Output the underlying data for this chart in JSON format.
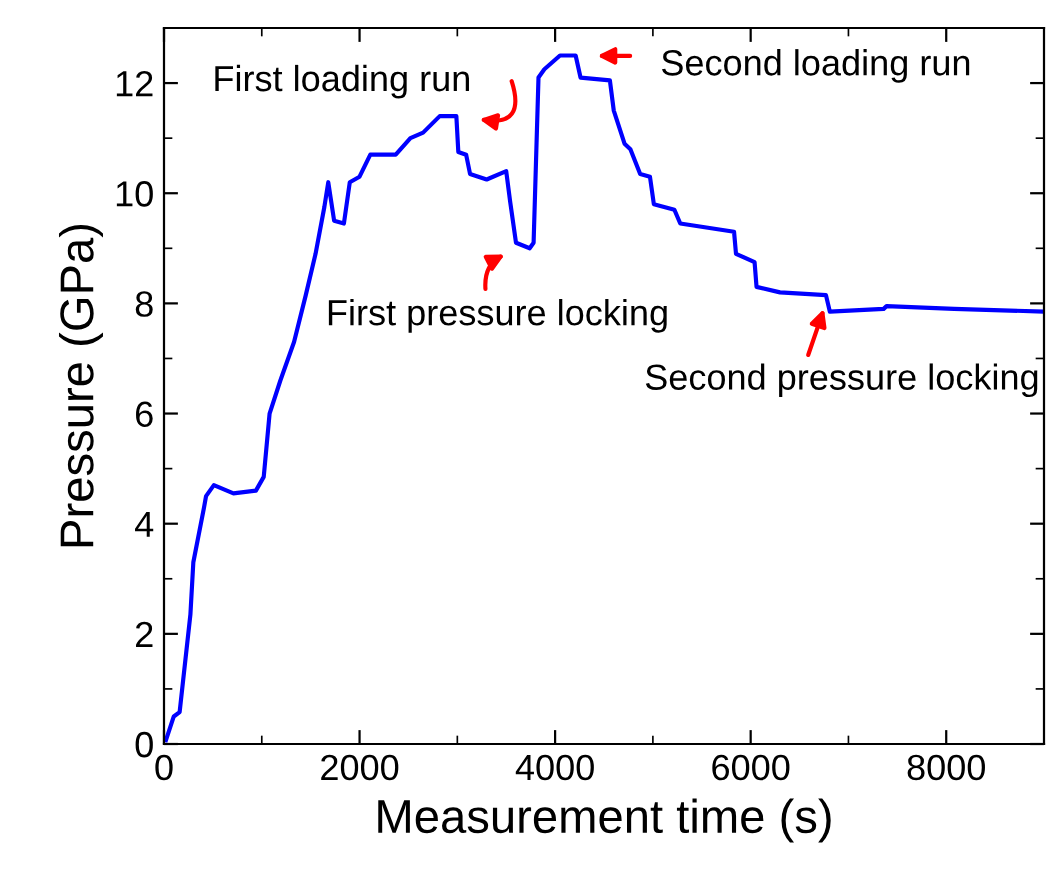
{
  "chart_data": {
    "type": "line",
    "xlabel": "Measurement time (s)",
    "ylabel": "Pressure (GPa)",
    "xlim": [
      0,
      9000
    ],
    "ylim": [
      0,
      13
    ],
    "xticks": [
      0,
      2000,
      4000,
      6000,
      8000
    ],
    "yticks": [
      0,
      2,
      4,
      6,
      8,
      10,
      12
    ],
    "grid": false,
    "legend": false,
    "marker": "none",
    "line_style": "solid",
    "series": [
      {
        "color": "#0000ff",
        "x": [
          20,
          100,
          160,
          270,
          300,
          410,
          430,
          510,
          710,
          940,
          1020,
          1080,
          1190,
          1330,
          1450,
          1550,
          1640,
          1680,
          1740,
          1840,
          1900,
          2000,
          2110,
          2370,
          2520,
          2650,
          2820,
          2990,
          3010,
          3090,
          3130,
          3300,
          3500,
          3540,
          3600,
          3740,
          3780,
          3830,
          3890,
          4050,
          4210,
          4260,
          4560,
          4600,
          4710,
          4770,
          4870,
          4970,
          5010,
          5220,
          5280,
          5830,
          5850,
          6040,
          6060,
          6300,
          6770,
          6810,
          7360,
          7390,
          8080,
          9000
        ],
        "values": [
          0.07,
          0.5,
          0.58,
          2.35,
          3.3,
          4.3,
          4.5,
          4.7,
          4.55,
          4.6,
          4.85,
          6.0,
          6.6,
          7.3,
          8.15,
          8.9,
          9.75,
          10.2,
          9.5,
          9.45,
          10.2,
          10.3,
          10.7,
          10.7,
          11.0,
          11.1,
          11.4,
          11.4,
          10.75,
          10.7,
          10.35,
          10.25,
          10.4,
          9.85,
          9.1,
          9.0,
          9.1,
          12.1,
          12.25,
          12.5,
          12.5,
          12.1,
          12.05,
          11.5,
          10.9,
          10.8,
          10.35,
          10.3,
          9.8,
          9.7,
          9.45,
          9.3,
          8.9,
          8.75,
          8.3,
          8.2,
          8.15,
          7.85,
          7.9,
          7.95,
          7.9,
          7.85
        ]
      }
    ],
    "annotations": [
      "First loading run",
      "Second loading run",
      "First pressure locking",
      "Second pressure locking"
    ]
  }
}
